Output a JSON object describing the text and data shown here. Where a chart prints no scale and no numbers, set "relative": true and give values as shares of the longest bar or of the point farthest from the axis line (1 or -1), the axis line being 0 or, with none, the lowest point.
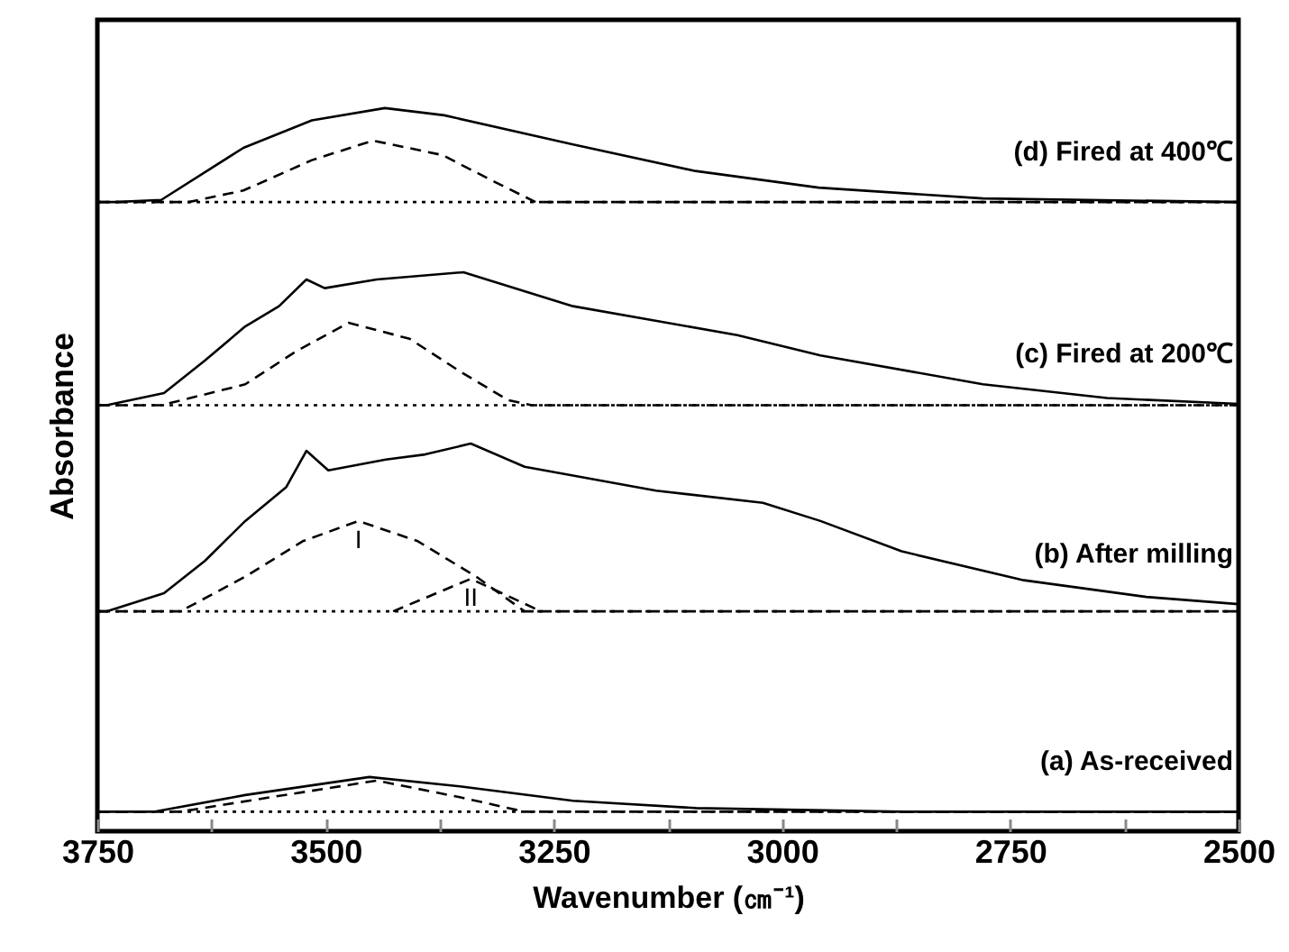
{
  "chart_data": {
    "type": "line",
    "relative": true,
    "xlabel": "Wavenumber (㎝⁻¹)",
    "ylabel": "Absorbance",
    "xlim": [
      3750,
      2500
    ],
    "xticks": [
      3750,
      {
        "value": 3625,
        "label": null
      },
      3500,
      {
        "value": 3375,
        "label": null
      },
      3250,
      {
        "value": 3125,
        "label": null
      },
      3000,
      {
        "value": 2875,
        "label": null
      },
      2750,
      {
        "value": 2625,
        "label": null
      },
      2500
    ],
    "grid": false,
    "marker": "none",
    "series": [
      {
        "name": "(d) Fired at 400℃",
        "color": "#000000",
        "line_style": "solid",
        "x": [
          3750,
          3730,
          3680,
          3590,
          3515,
          3435,
          3370,
          3230,
          3095,
          2960,
          2780,
          2500
        ],
        "values": [
          0.87,
          0.87,
          0.873,
          0.945,
          0.983,
          1.0,
          0.99,
          0.95,
          0.913,
          0.89,
          0.875,
          0.87
        ]
      },
      {
        "color": "#000000",
        "line_style": "dashed",
        "x": [
          3750,
          3650,
          3590,
          3515,
          3448,
          3372,
          3318,
          3270,
          2500
        ],
        "values": [
          0.87,
          0.87,
          0.886,
          0.928,
          0.955,
          0.935,
          0.9,
          0.87,
          0.87
        ]
      },
      {
        "color": "#000000",
        "line_style": "dotted",
        "x": [
          3750,
          2500
        ],
        "values": [
          0.87,
          0.87
        ]
      },
      {
        "name": "(c) Fired at 200℃",
        "color": "#000000",
        "line_style": "solid",
        "x": [
          3750,
          3740,
          3677,
          3632,
          3588,
          3551,
          3521,
          3501,
          3444,
          3349,
          3229,
          3049,
          2958,
          2780,
          2644,
          2500
        ],
        "values": [
          0.589,
          0.589,
          0.606,
          0.651,
          0.698,
          0.726,
          0.763,
          0.751,
          0.763,
          0.773,
          0.726,
          0.686,
          0.658,
          0.618,
          0.599,
          0.591
        ]
      },
      {
        "color": "#000000",
        "line_style": "dashed",
        "x": [
          3750,
          3680,
          3588,
          3533,
          3475,
          3408,
          3353,
          3300,
          3274,
          2500
        ],
        "values": [
          0.589,
          0.589,
          0.618,
          0.663,
          0.703,
          0.681,
          0.636,
          0.596,
          0.589,
          0.589
        ]
      },
      {
        "color": "#000000",
        "line_style": "dotted",
        "x": [
          3750,
          2500
        ],
        "values": [
          0.589,
          0.589
        ]
      },
      {
        "name": "(b) After milling",
        "color": "#000000",
        "line_style": "solid",
        "x": [
          3750,
          3740,
          3677,
          3632,
          3588,
          3543,
          3521,
          3497,
          3434,
          3391,
          3341,
          3282,
          3138,
          3021,
          2958,
          2869,
          2735,
          2601,
          2500
        ],
        "values": [
          0.304,
          0.304,
          0.329,
          0.374,
          0.429,
          0.476,
          0.526,
          0.499,
          0.514,
          0.521,
          0.536,
          0.504,
          0.471,
          0.454,
          0.429,
          0.387,
          0.347,
          0.324,
          0.314
        ]
      },
      {
        "name": "I",
        "color": "#000000",
        "line_style": "dashed",
        "x": [
          3750,
          3659,
          3588,
          3525,
          3464,
          3399,
          3335,
          3282,
          2500
        ],
        "values": [
          0.304,
          0.304,
          0.352,
          0.401,
          0.429,
          0.401,
          0.352,
          0.304,
          0.304
        ]
      },
      {
        "name": "II",
        "color": "#000000",
        "line_style": "dashed",
        "x": [
          3426,
          3341,
          3264
        ],
        "values": [
          0.304,
          0.349,
          0.304
        ]
      },
      {
        "color": "#000000",
        "line_style": "dotted",
        "x": [
          3750,
          2500
        ],
        "values": [
          0.304,
          0.304
        ]
      },
      {
        "name": "(a) As-received",
        "color": "#000000",
        "line_style": "solid",
        "x": [
          3750,
          3687,
          3588,
          3452,
          3353,
          3229,
          3094,
          2869,
          2500
        ],
        "values": [
          0.027,
          0.027,
          0.05,
          0.075,
          0.062,
          0.042,
          0.032,
          0.027,
          0.027
        ]
      },
      {
        "color": "#000000",
        "line_style": "dashed",
        "x": [
          3750,
          3659,
          3560,
          3444,
          3353,
          3282,
          2500
        ],
        "values": [
          0.027,
          0.027,
          0.047,
          0.07,
          0.047,
          0.027,
          0.027
        ]
      },
      {
        "color": "#000000",
        "line_style": "dotted",
        "x": [
          3750,
          2500
        ],
        "values": [
          0.027,
          0.027
        ]
      }
    ]
  }
}
